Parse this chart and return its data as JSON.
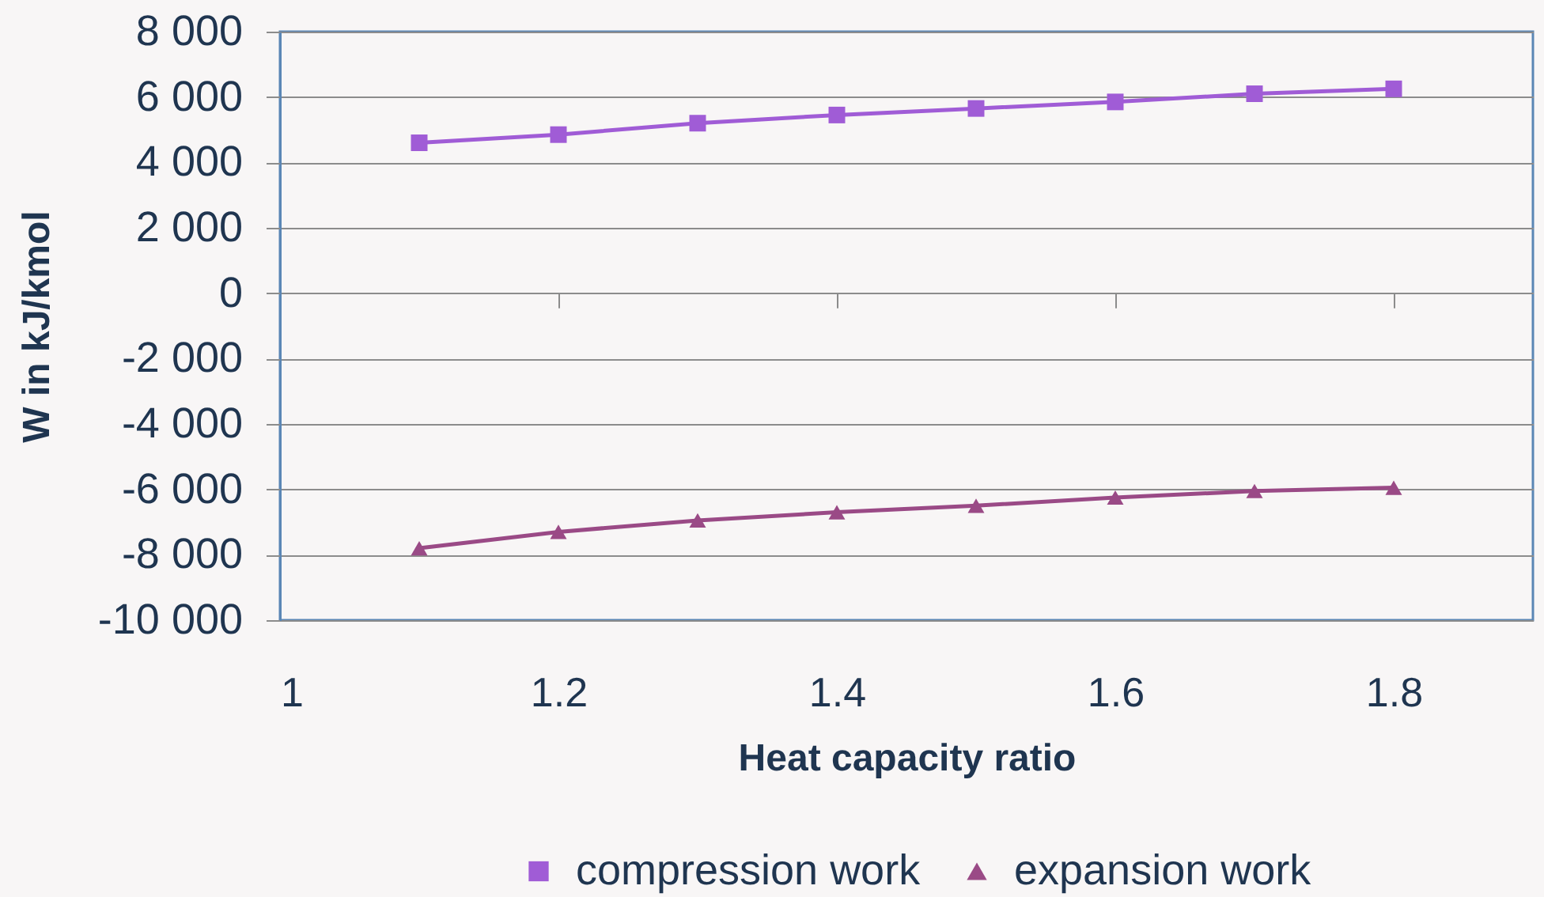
{
  "chart_data": {
    "type": "line",
    "xlabel": "Heat capacity ratio",
    "ylabel": "W in kJ/kmol",
    "x": [
      1.1,
      1.2,
      1.3,
      1.4,
      1.5,
      1.6,
      1.7,
      1.8
    ],
    "series": [
      {
        "name": "compression work",
        "color": "#a05cd6",
        "marker": "square",
        "values": [
          4600,
          4850,
          5200,
          5450,
          5650,
          5850,
          6100,
          6250
        ]
      },
      {
        "name": "expansion work",
        "color": "#9a4a86",
        "marker": "triangle",
        "values": [
          -7800,
          -7300,
          -6950,
          -6700,
          -6500,
          -6250,
          -6050,
          -5950
        ]
      }
    ],
    "xlim": [
      1,
      1.9
    ],
    "xticks": [
      1,
      1.2,
      1.4,
      1.6,
      1.8
    ],
    "ylim": [
      -10000,
      8000
    ],
    "yticks": [
      {
        "value": -10000,
        "label": "-10 000"
      },
      {
        "value": -8000,
        "label": "-8 000"
      },
      {
        "value": -6000,
        "label": "-6 000"
      },
      {
        "value": -4000,
        "label": "-4 000"
      },
      {
        "value": -2000,
        "label": "-2 000"
      },
      0,
      {
        "value": 2000,
        "label": "2 000"
      },
      {
        "value": 4000,
        "label": "4 000"
      },
      {
        "value": 6000,
        "label": "6 000"
      },
      {
        "value": 8000,
        "label": "8 000"
      }
    ],
    "grid": "y",
    "legend": "bottom"
  }
}
